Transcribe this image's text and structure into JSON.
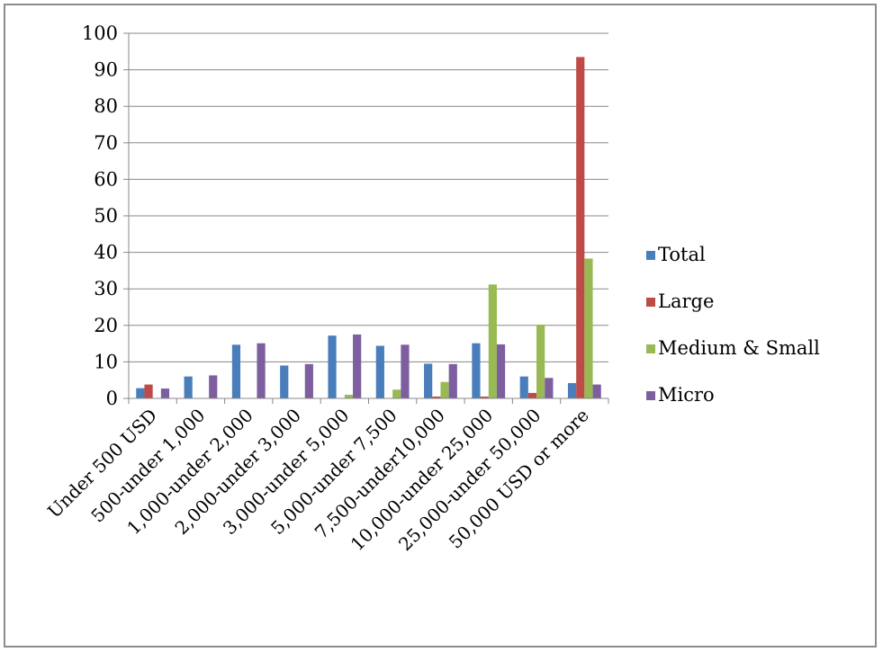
{
  "chart_data": {
    "type": "bar",
    "categories": [
      "Under 500 USD",
      "500-under 1,000",
      "1,000-under 2,000",
      "2,000-under 3,000",
      "3,000-under 5,000",
      "5,000-under 7,500",
      "7,500-under10,000",
      "10,000-under 25,000",
      "25,000-under 50,000",
      "50,000 USD or more"
    ],
    "series": [
      {
        "name": "Total",
        "color": "#4a7ebb",
        "values": [
          2.8,
          6.0,
          14.7,
          9.0,
          17.2,
          14.4,
          9.5,
          15.1,
          6.0,
          4.2
        ]
      },
      {
        "name": "Large",
        "color": "#be4b48",
        "values": [
          3.8,
          0,
          0,
          0,
          0,
          0,
          0.5,
          0.5,
          1.5,
          93.5
        ]
      },
      {
        "name": "Medium & Small",
        "color": "#98b954",
        "values": [
          0,
          0,
          0,
          0,
          1.0,
          2.4,
          4.5,
          31.2,
          20.2,
          38.3
        ]
      },
      {
        "name": "Micro",
        "color": "#7d5fa0",
        "values": [
          2.7,
          6.3,
          15.1,
          9.4,
          17.5,
          14.7,
          9.4,
          14.8,
          5.6,
          3.8
        ]
      }
    ],
    "ylim": [
      0,
      100
    ],
    "yticks": [
      "0",
      "10",
      "20",
      "30",
      "40",
      "50",
      "60",
      "70",
      "80",
      "90",
      "100"
    ],
    "grid": true,
    "legend_position": "right",
    "xlabel": "",
    "ylabel": "",
    "title": ""
  }
}
